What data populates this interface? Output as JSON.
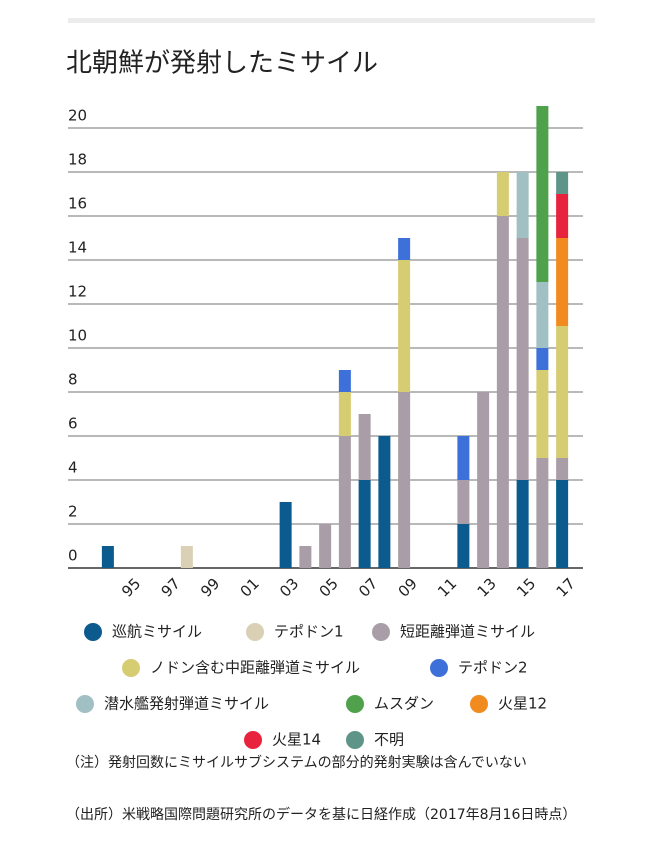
{
  "chart_data": {
    "type": "stacked_bar",
    "title": "北朝鮮が発射したミサイル",
    "categories": [
      null,
      "95",
      null,
      "97",
      null,
      "99",
      null,
      "01",
      null,
      "03",
      null,
      "05",
      null,
      "07",
      null,
      "09",
      null,
      "11",
      null,
      "13",
      null,
      "15",
      null,
      "17"
    ],
    "series": [
      {
        "name": "巡航ミサイル",
        "color": "#0b5b8f",
        "values": [
          1,
          0,
          0,
          0,
          0,
          0,
          0,
          0,
          0,
          3,
          0,
          0,
          0,
          4,
          6,
          0,
          0,
          0,
          2,
          0,
          0,
          4,
          0,
          4
        ]
      },
      {
        "name": "テポドン1",
        "color": "#d9d0b6",
        "values": [
          0,
          0,
          0,
          0,
          1,
          0,
          0,
          0,
          0,
          0,
          0,
          0,
          0,
          0,
          0,
          0,
          0,
          0,
          0,
          0,
          0,
          0,
          0,
          0
        ]
      },
      {
        "name": "短距離弾道ミサイル",
        "color": "#a99ea7",
        "values": [
          0,
          0,
          0,
          0,
          0,
          0,
          0,
          0,
          0,
          0,
          1,
          2,
          6,
          3,
          0,
          8,
          0,
          0,
          2,
          8,
          16,
          11,
          5,
          1
        ]
      },
      {
        "name": "ノドン含む中距離弾道ミサイル",
        "color": "#d6cd72",
        "values": [
          0,
          0,
          0,
          0,
          0,
          0,
          0,
          0,
          0,
          0,
          0,
          0,
          2,
          0,
          0,
          6,
          0,
          0,
          0,
          0,
          2,
          0,
          4,
          6
        ]
      },
      {
        "name": "テポドン2",
        "color": "#3d70d9",
        "values": [
          0,
          0,
          0,
          0,
          0,
          0,
          0,
          0,
          0,
          0,
          0,
          0,
          1,
          0,
          0,
          1,
          0,
          0,
          2,
          0,
          0,
          0,
          1,
          0
        ]
      },
      {
        "name": "潜水艦発射弾道ミサイル",
        "color": "#a0c0c4",
        "values": [
          0,
          0,
          0,
          0,
          0,
          0,
          0,
          0,
          0,
          0,
          0,
          0,
          0,
          0,
          0,
          0,
          0,
          0,
          0,
          0,
          0,
          3,
          3,
          0
        ]
      },
      {
        "name": "ムスダン",
        "color": "#4fa24b",
        "values": [
          0,
          0,
          0,
          0,
          0,
          0,
          0,
          0,
          0,
          0,
          0,
          0,
          0,
          0,
          0,
          0,
          0,
          0,
          0,
          0,
          0,
          0,
          8,
          0
        ]
      },
      {
        "name": "火星12",
        "color": "#f28b1f",
        "values": [
          0,
          0,
          0,
          0,
          0,
          0,
          0,
          0,
          0,
          0,
          0,
          0,
          0,
          0,
          0,
          0,
          0,
          0,
          0,
          0,
          0,
          0,
          0,
          4
        ]
      },
      {
        "name": "火星14",
        "color": "#e8233d",
        "values": [
          0,
          0,
          0,
          0,
          0,
          0,
          0,
          0,
          0,
          0,
          0,
          0,
          0,
          0,
          0,
          0,
          0,
          0,
          0,
          0,
          0,
          0,
          0,
          2
        ]
      },
      {
        "name": "不明",
        "color": "#5f9589",
        "values": [
          0,
          0,
          0,
          0,
          0,
          0,
          0,
          0,
          0,
          0,
          0,
          0,
          0,
          0,
          0,
          0,
          0,
          0,
          0,
          0,
          0,
          0,
          0,
          1
        ]
      }
    ],
    "ylim": [
      0,
      21
    ],
    "yticks": [
      0,
      2,
      4,
      6,
      8,
      10,
      12,
      14,
      16,
      18,
      20
    ],
    "grid": true,
    "notes": [
      "（注）発射回数にミサイルサブシステムの部分的発射実験は含んでいない",
      "（出所）米戦略国際問題研究所のデータを基に日経作成（2017年8月16日時点）"
    ]
  }
}
